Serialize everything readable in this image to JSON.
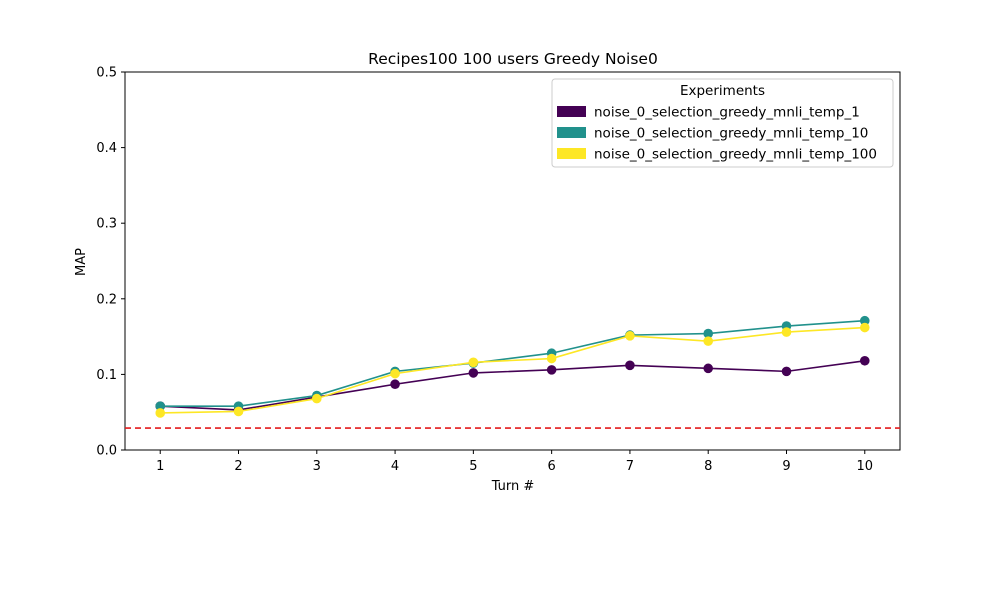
{
  "chart_data": {
    "type": "line",
    "title": "Recipes100 100 users Greedy Noise0",
    "xlabel": "Turn #",
    "ylabel": "MAP",
    "x": [
      1,
      2,
      3,
      4,
      5,
      6,
      7,
      8,
      9,
      10
    ],
    "xticks": [
      "1",
      "2",
      "3",
      "4",
      "5",
      "6",
      "7",
      "8",
      "9",
      "10"
    ],
    "xlim": [
      0.55,
      10.45
    ],
    "ylim": [
      0.0,
      0.5
    ],
    "yticks": [
      "0.0",
      "0.1",
      "0.2",
      "0.3",
      "0.4",
      "0.5"
    ],
    "grid": false,
    "legend": {
      "title": "Experiments",
      "placement": "top-right"
    },
    "baseline": {
      "y": 0.029,
      "color": "#e41a1c",
      "style": "dashed"
    },
    "series": [
      {
        "name": "noise_0_selection_greedy_mnli_temp_1",
        "color": "#440154",
        "values": [
          0.058,
          0.053,
          0.07,
          0.087,
          0.102,
          0.106,
          0.112,
          0.108,
          0.104,
          0.118
        ]
      },
      {
        "name": "noise_0_selection_greedy_mnli_temp_10",
        "color": "#21918c",
        "values": [
          0.058,
          0.058,
          0.072,
          0.104,
          0.115,
          0.128,
          0.152,
          0.154,
          0.164,
          0.171
        ]
      },
      {
        "name": "noise_0_selection_greedy_mnli_temp_100",
        "color": "#fde725",
        "values": [
          0.049,
          0.051,
          0.068,
          0.101,
          0.116,
          0.121,
          0.151,
          0.144,
          0.156,
          0.162
        ]
      }
    ]
  }
}
